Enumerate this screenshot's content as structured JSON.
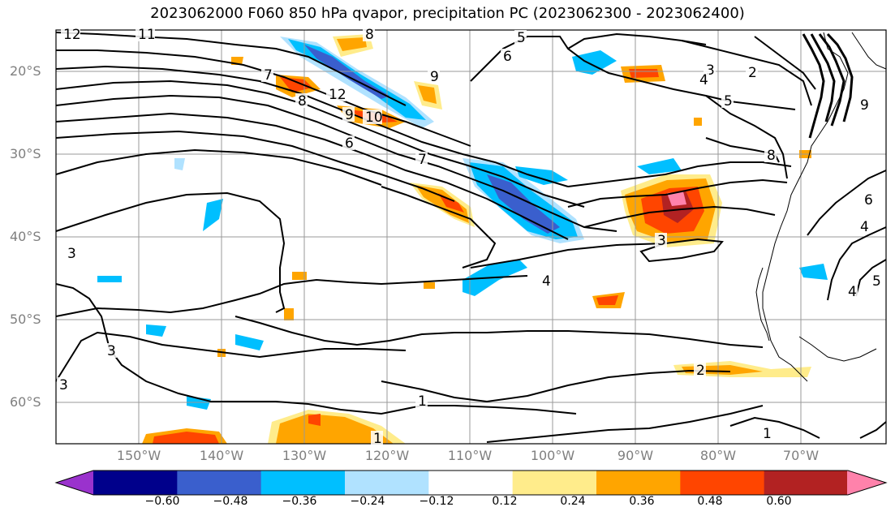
{
  "title": "2023062000 F060 850 hPa qvapor, precipitation PC (2023062300 - 2023062400)",
  "lat_labels": [
    "20°S",
    "30°S",
    "40°S",
    "50°S",
    "60°S"
  ],
  "lon_labels": [
    "150°W",
    "140°W",
    "130°W",
    "120°W",
    "110°W",
    "100°W",
    "90°W",
    "80°W",
    "70°W"
  ],
  "colorbar": {
    "ticks": [
      "−0.60",
      "−0.48",
      "−0.36",
      "−0.24",
      "−0.12",
      "0.12",
      "0.24",
      "0.36",
      "0.48",
      "0.60"
    ],
    "colors": [
      "#9a32cd",
      "#00008b",
      "#3a5fcd",
      "#00bfff",
      "#b0e2ff",
      "#ffffff",
      "#ffec8b",
      "#ffa500",
      "#ff4500",
      "#b22222",
      "#ff82ab"
    ]
  },
  "contour_labels": [
    {
      "t": "12",
      "id": "c1"
    },
    {
      "t": "11",
      "id": "c2"
    },
    {
      "t": "8",
      "id": "c3"
    },
    {
      "t": "9",
      "id": "c4"
    },
    {
      "t": "6",
      "id": "c5"
    },
    {
      "t": "5",
      "id": "c6"
    },
    {
      "t": "3",
      "id": "c7"
    },
    {
      "t": "2",
      "id": "c8"
    },
    {
      "t": "4",
      "id": "c9"
    },
    {
      "t": "5",
      "id": "c10"
    },
    {
      "t": "7",
      "id": "c11"
    },
    {
      "t": "8",
      "id": "c12"
    },
    {
      "t": "12",
      "id": "c13"
    },
    {
      "t": "9",
      "id": "c14"
    },
    {
      "t": "10",
      "id": "c15"
    },
    {
      "t": "6",
      "id": "c16"
    },
    {
      "t": "7",
      "id": "c17"
    },
    {
      "t": "8",
      "id": "c18"
    },
    {
      "t": "4",
      "id": "c19"
    },
    {
      "t": "3",
      "id": "c20"
    },
    {
      "t": "3",
      "id": "c21"
    },
    {
      "t": "4",
      "id": "c22"
    },
    {
      "t": "5",
      "id": "c23"
    },
    {
      "t": "3",
      "id": "c24"
    },
    {
      "t": "2",
      "id": "c25"
    },
    {
      "t": "1",
      "id": "c26"
    },
    {
      "t": "1",
      "id": "c27"
    },
    {
      "t": "1",
      "id": "c28"
    },
    {
      "t": "3",
      "id": "c29"
    },
    {
      "t": "4",
      "id": "c30"
    },
    {
      "t": "6",
      "id": "c31"
    },
    {
      "t": "9",
      "id": "c32"
    }
  ]
}
